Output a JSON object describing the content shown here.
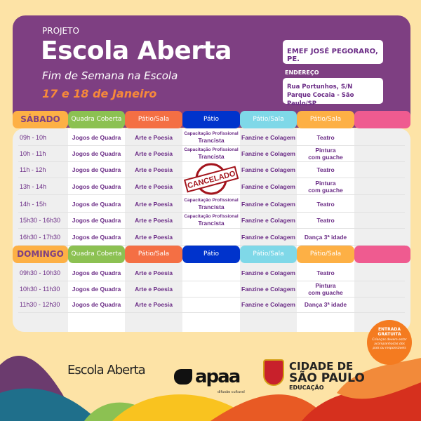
{
  "header": {
    "project": "PROJETO",
    "title": "Escola Aberta",
    "subtitle": "Fim de Semana na Escola",
    "dates": "17 e 18 de Janeiro",
    "school": "EMEF JOSÉ PEGORARO, PE.",
    "address_label": "ENDEREÇO",
    "address_line1": "Rua Portunhos, S/N",
    "address_line2": "Parque Cocaia - São Paulo/SP"
  },
  "colors": {
    "purple": "#7e3f82",
    "orange": "#f7893a",
    "green": "#8cc152",
    "red_orange": "#f46f44",
    "blue": "#0033cc",
    "cyan": "#7fd8e8",
    "amber": "#fdb045",
    "pink": "#ef5b90",
    "stamp": "#a3141c"
  },
  "columns": [
    "Quadra Coberta",
    "Pátio/Sala",
    "Pátio",
    "Pátio/Sala",
    "Pátio/Sala",
    ""
  ],
  "saturday": {
    "label": "SÁBADO",
    "rows": [
      {
        "time": "09h - 10h",
        "cells": [
          "Jogos de Quadra",
          "Arte e Poesia",
          "Capacitação Profissional|Trancista",
          "Fanzine e Colagem",
          "Teatro",
          ""
        ]
      },
      {
        "time": "10h - 11h",
        "cells": [
          "Jogos de Quadra",
          "Arte e Poesia",
          "Capacitação Profissional|Trancista",
          "Fanzine e Colagem",
          "Pintura|com guache",
          ""
        ]
      },
      {
        "time": "11h - 12h",
        "cells": [
          "Jogos de Quadra",
          "Arte e Poesia",
          "",
          "Fanzine e Colagem",
          "Teatro",
          ""
        ]
      },
      {
        "time": "13h - 14h",
        "cells": [
          "Jogos de Quadra",
          "Arte e Poesia",
          "",
          "Fanzine e Colagem",
          "Pintura|com guache",
          ""
        ]
      },
      {
        "time": "14h - 15h",
        "cells": [
          "Jogos de Quadra",
          "Arte e Poesia",
          "Capacitação Profissional|Trancista",
          "Fanzine e Colagem",
          "Teatro",
          ""
        ]
      },
      {
        "time": "15h30 - 16h30",
        "cells": [
          "Jogos de Quadra",
          "Arte e Poesia",
          "Capacitação Profissional|Trancista",
          "Fanzine e Colagem",
          "Teatro",
          ""
        ]
      },
      {
        "time": "16h30 - 17h30",
        "cells": [
          "Jogos de Quadra",
          "Arte e Poesia",
          "",
          "Fanzine e Colagem",
          "Dança 3ª idade",
          ""
        ]
      }
    ]
  },
  "sunday": {
    "label": "DOMINGO",
    "rows": [
      {
        "time": "09h30 - 10h30",
        "cells": [
          "Jogos de Quadra",
          "Arte e Poesia",
          "",
          "Fanzine e Colagem",
          "Teatro",
          ""
        ]
      },
      {
        "time": "10h30 - 11h30",
        "cells": [
          "Jogos de Quadra",
          "Arte e Poesia",
          "",
          "Fanzine e Colagem",
          "Pintura|com guache",
          ""
        ]
      },
      {
        "time": "11h30 - 12h30",
        "cells": [
          "Jogos de Quadra",
          "Arte e Poesia",
          "",
          "Fanzine e Colagem",
          "Dança 3ª idade",
          ""
        ]
      }
    ]
  },
  "stamp": "CANCELADO",
  "badge": {
    "title1": "ENTRADA",
    "title2": "GRATUITA",
    "note": "Crianças devem estar acompanhadas dos pais ou responsáveis"
  },
  "logos": {
    "escola_aberta": "Escola Aberta",
    "apaa": "apaa",
    "apaa_sub": "difusão cultural",
    "sp_line1": "CIDADE DE",
    "sp_line2": "SÃO PAULO",
    "sp_line3": "EDUCAÇÃO"
  }
}
